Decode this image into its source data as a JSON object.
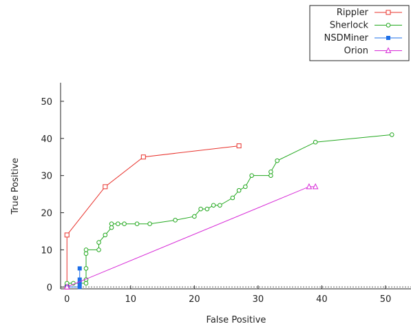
{
  "chart_data": {
    "type": "line",
    "title": "",
    "xlabel": "False Positive",
    "ylabel": "True Positive",
    "xlim": [
      -1,
      54
    ],
    "ylim": [
      -0.5,
      55
    ],
    "xticks": [
      0,
      10,
      20,
      30,
      40,
      50
    ],
    "yticks": [
      0,
      10,
      20,
      30,
      40,
      50
    ],
    "grid": false,
    "legend_position": "top-right, outside plot",
    "series": [
      {
        "name": "Rippler",
        "color": "#e8302a",
        "marker": "open-square",
        "x": [
          0,
          0,
          6,
          12,
          27
        ],
        "y": [
          0,
          14,
          27,
          35,
          38
        ]
      },
      {
        "name": "Sherlock",
        "color": "#22a81e",
        "marker": "open-circle",
        "x": [
          0,
          0,
          1,
          3,
          3,
          3,
          3,
          3,
          5,
          5,
          6,
          7,
          7,
          8,
          9,
          11,
          13,
          17,
          20,
          21,
          22,
          23,
          24,
          26,
          27,
          28,
          29,
          32,
          32,
          33,
          39,
          51
        ],
        "y": [
          0,
          1,
          1,
          1,
          2,
          5,
          9,
          10,
          10,
          12,
          14,
          16,
          17,
          17,
          17,
          17,
          17,
          18,
          19,
          21,
          21,
          22,
          22,
          24,
          26,
          27,
          30,
          30,
          31,
          34,
          39,
          41
        ]
      },
      {
        "name": "NSDMiner",
        "color": "#1e6fe8",
        "marker": "filled-square",
        "x": [
          0,
          2,
          2,
          2,
          2
        ],
        "y": [
          0,
          0,
          1,
          2,
          5
        ]
      },
      {
        "name": "Orion",
        "color": "#d72ad7",
        "marker": "open-triangle",
        "x": [
          0,
          38,
          39
        ],
        "y": [
          0,
          27,
          27
        ]
      }
    ]
  }
}
